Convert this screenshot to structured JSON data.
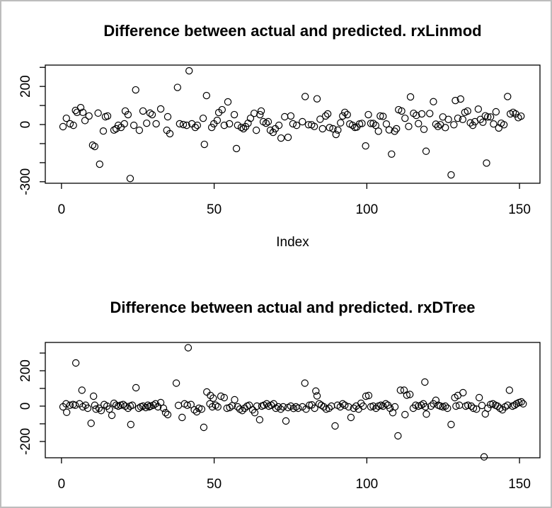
{
  "frame": {
    "background": "#ffffff",
    "border_color": "#bdbdbd",
    "axis_color": "#000000",
    "point_color": "#000000"
  },
  "chart_data": [
    {
      "type": "scatter",
      "title": "Difference between actual and predicted. rxLinmod",
      "xlabel": "Index",
      "ylabel": "",
      "grid": false,
      "legend": "none",
      "marker": "open-circle",
      "xlim": [
        -5.3,
        156.7
      ],
      "ylim": [
        -308,
        312
      ],
      "x_ticks": [
        0,
        50,
        100,
        150
      ],
      "x_tick_labels": [
        "0",
        "50",
        "100",
        "150"
      ],
      "y_ticks": [
        300,
        200,
        100,
        0,
        -100,
        -200,
        -300
      ],
      "y_tick_labels": [
        "",
        "200",
        "",
        "0",
        "",
        "",
        "-300"
      ],
      "points": [
        [
          0.5,
          -11
        ],
        [
          1.6,
          33
        ],
        [
          2.8,
          4
        ],
        [
          3.9,
          -4
        ],
        [
          4.6,
          74
        ],
        [
          5.1,
          64
        ],
        [
          6.3,
          89
        ],
        [
          7.0,
          64
        ],
        [
          7.7,
          21
        ],
        [
          9.0,
          45
        ],
        [
          10.2,
          -108
        ],
        [
          10.9,
          -115
        ],
        [
          12.0,
          60
        ],
        [
          12.5,
          -208
        ],
        [
          13.7,
          -34
        ],
        [
          14.4,
          41
        ],
        [
          15.1,
          45
        ],
        [
          17.2,
          -29
        ],
        [
          17.9,
          -22
        ],
        [
          18.6,
          -4
        ],
        [
          19.5,
          -15
        ],
        [
          20.6,
          4
        ],
        [
          20.9,
          71
        ],
        [
          21.8,
          52
        ],
        [
          22.5,
          -283
        ],
        [
          23.7,
          -4
        ],
        [
          24.3,
          182
        ],
        [
          25.5,
          -30
        ],
        [
          26.7,
          71
        ],
        [
          27.9,
          7
        ],
        [
          29.0,
          60
        ],
        [
          29.7,
          52
        ],
        [
          31.0,
          4
        ],
        [
          32.5,
          82
        ],
        [
          34.5,
          -30
        ],
        [
          34.8,
          41
        ],
        [
          35.5,
          -48
        ],
        [
          38.0,
          195
        ],
        [
          38.7,
          4
        ],
        [
          39.9,
          0
        ],
        [
          41.0,
          -4
        ],
        [
          41.8,
          282
        ],
        [
          42.7,
          4
        ],
        [
          43.8,
          -15
        ],
        [
          44.5,
          -4
        ],
        [
          46.4,
          33
        ],
        [
          46.8,
          -104
        ],
        [
          47.5,
          152
        ],
        [
          49.2,
          -15
        ],
        [
          49.9,
          4
        ],
        [
          51.0,
          22
        ],
        [
          51.5,
          63
        ],
        [
          52.6,
          78
        ],
        [
          53.3,
          -4
        ],
        [
          54.5,
          119
        ],
        [
          55.0,
          4
        ],
        [
          56.6,
          52
        ],
        [
          57.3,
          -126
        ],
        [
          57.7,
          -4
        ],
        [
          58.9,
          -15
        ],
        [
          59.6,
          -22
        ],
        [
          60.3,
          -11
        ],
        [
          61.1,
          7
        ],
        [
          61.9,
          33
        ],
        [
          63.1,
          59
        ],
        [
          63.8,
          -30
        ],
        [
          65.0,
          52
        ],
        [
          65.4,
          71
        ],
        [
          66.1,
          15
        ],
        [
          67.0,
          7
        ],
        [
          67.7,
          15
        ],
        [
          68.4,
          -30
        ],
        [
          69.3,
          -41
        ],
        [
          70.0,
          -22
        ],
        [
          71.2,
          -4
        ],
        [
          71.9,
          -71
        ],
        [
          73.1,
          41
        ],
        [
          74.2,
          -67
        ],
        [
          75.1,
          45
        ],
        [
          75.8,
          4
        ],
        [
          77.0,
          -4
        ],
        [
          78.9,
          15
        ],
        [
          79.8,
          147
        ],
        [
          80.9,
          -1
        ],
        [
          81.9,
          -1
        ],
        [
          82.8,
          -10
        ],
        [
          83.7,
          135
        ],
        [
          84.7,
          28
        ],
        [
          85.5,
          -22
        ],
        [
          86.5,
          45
        ],
        [
          87.2,
          56
        ],
        [
          87.8,
          -16
        ],
        [
          88.9,
          -22
        ],
        [
          89.9,
          -52
        ],
        [
          90.5,
          -29
        ],
        [
          91.4,
          9
        ],
        [
          92.1,
          45
        ],
        [
          92.8,
          64
        ],
        [
          93.6,
          52
        ],
        [
          94.4,
          3
        ],
        [
          95.3,
          -4
        ],
        [
          96.1,
          -15
        ],
        [
          96.7,
          -13
        ],
        [
          97.6,
          3
        ],
        [
          98.4,
          6
        ],
        [
          99.6,
          -112
        ],
        [
          100.5,
          52
        ],
        [
          101.3,
          6
        ],
        [
          102.1,
          6
        ],
        [
          102.9,
          -4
        ],
        [
          103.8,
          -35
        ],
        [
          104.4,
          45
        ],
        [
          105.3,
          43
        ],
        [
          106.4,
          3
        ],
        [
          107.3,
          -28
        ],
        [
          108.1,
          -155
        ],
        [
          109.1,
          -35
        ],
        [
          109.7,
          -22
        ],
        [
          110.4,
          78
        ],
        [
          111.4,
          71
        ],
        [
          112.5,
          33
        ],
        [
          113.7,
          -10
        ],
        [
          114.3,
          145
        ],
        [
          115.3,
          59
        ],
        [
          116.2,
          48
        ],
        [
          116.9,
          5
        ],
        [
          118.0,
          56
        ],
        [
          118.7,
          -25
        ],
        [
          119.4,
          -140
        ],
        [
          120.6,
          58
        ],
        [
          121.8,
          120
        ],
        [
          122.6,
          2
        ],
        [
          123.3,
          -10
        ],
        [
          124.1,
          -1
        ],
        [
          124.9,
          40
        ],
        [
          125.7,
          -16
        ],
        [
          126.7,
          27
        ],
        [
          127.6,
          -264
        ],
        [
          128.5,
          -1
        ],
        [
          129.0,
          126
        ],
        [
          129.8,
          33
        ],
        [
          130.7,
          134
        ],
        [
          131.4,
          27
        ],
        [
          132.1,
          64
        ],
        [
          133.0,
          71
        ],
        [
          133.9,
          9
        ],
        [
          134.7,
          -4
        ],
        [
          135.4,
          15
        ],
        [
          136.5,
          81
        ],
        [
          137.2,
          27
        ],
        [
          138.0,
          12
        ],
        [
          138.8,
          46
        ],
        [
          139.2,
          -202
        ],
        [
          139.6,
          40
        ],
        [
          140.5,
          40
        ],
        [
          141.5,
          3
        ],
        [
          142.3,
          67
        ],
        [
          143.2,
          -18
        ],
        [
          144.0,
          7
        ],
        [
          144.9,
          -1
        ],
        [
          146.1,
          147
        ],
        [
          147.0,
          56
        ],
        [
          147.9,
          64
        ],
        [
          148.7,
          56
        ],
        [
          149.6,
          36
        ],
        [
          150.5,
          44
        ]
      ]
    },
    {
      "type": "scatter",
      "title": "Difference between actual and predicted. rxDTree",
      "xlabel": "",
      "ylabel": "",
      "grid": false,
      "legend": "none",
      "marker": "open-circle",
      "xlim": [
        -5.3,
        156.7
      ],
      "ylim": [
        -292,
        360
      ],
      "x_ticks": [
        0,
        50,
        100,
        150
      ],
      "x_tick_labels": [
        "0",
        "50",
        "100",
        "150"
      ],
      "y_ticks": [
        300,
        200,
        100,
        0,
        -100,
        -200
      ],
      "y_tick_labels": [
        "",
        "200",
        "",
        "0",
        "",
        "-200"
      ],
      "points": [
        [
          0.5,
          -4
        ],
        [
          1.5,
          13
        ],
        [
          1.7,
          -35
        ],
        [
          2.8,
          5
        ],
        [
          3.8,
          9
        ],
        [
          4.5,
          5
        ],
        [
          4.7,
          244
        ],
        [
          5.9,
          13
        ],
        [
          6.7,
          90
        ],
        [
          7.0,
          -4
        ],
        [
          7.9,
          5
        ],
        [
          8.6,
          -12
        ],
        [
          9.7,
          -97
        ],
        [
          10.5,
          56
        ],
        [
          10.9,
          5
        ],
        [
          11.3,
          -17
        ],
        [
          12.3,
          -12
        ],
        [
          13.0,
          -25
        ],
        [
          14.0,
          9
        ],
        [
          14.9,
          0
        ],
        [
          15.7,
          -17
        ],
        [
          16.5,
          -52
        ],
        [
          17.2,
          16
        ],
        [
          17.9,
          5
        ],
        [
          18.6,
          0
        ],
        [
          19.4,
          5
        ],
        [
          20.2,
          9
        ],
        [
          20.9,
          0
        ],
        [
          21.8,
          -12
        ],
        [
          22.5,
          0
        ],
        [
          22.7,
          -104
        ],
        [
          23.2,
          5
        ],
        [
          24.4,
          104
        ],
        [
          25.3,
          -12
        ],
        [
          26.0,
          -4
        ],
        [
          26.7,
          0
        ],
        [
          27.6,
          -8
        ],
        [
          28.3,
          5
        ],
        [
          28.7,
          -4
        ],
        [
          29.2,
          0
        ],
        [
          30.1,
          5
        ],
        [
          30.8,
          13
        ],
        [
          31.6,
          -4
        ],
        [
          32.5,
          20
        ],
        [
          33.4,
          -12
        ],
        [
          34.1,
          -37
        ],
        [
          34.8,
          -48
        ],
        [
          37.6,
          130
        ],
        [
          38.3,
          4
        ],
        [
          39.5,
          -64
        ],
        [
          40.3,
          13
        ],
        [
          41.2,
          5
        ],
        [
          41.5,
          330
        ],
        [
          42.4,
          9
        ],
        [
          43.5,
          -21
        ],
        [
          44.3,
          -32
        ],
        [
          45.0,
          -12
        ],
        [
          45.9,
          -17
        ],
        [
          46.6,
          -120
        ],
        [
          47.6,
          80
        ],
        [
          48.6,
          13
        ],
        [
          48.8,
          60
        ],
        [
          49.4,
          -4
        ],
        [
          49.7,
          45
        ],
        [
          50.5,
          5
        ],
        [
          51.2,
          -4
        ],
        [
          52.2,
          56
        ],
        [
          53.3,
          48
        ],
        [
          54.2,
          -12
        ],
        [
          55.1,
          -8
        ],
        [
          55.9,
          2
        ],
        [
          56.7,
          36
        ],
        [
          57.7,
          -4
        ],
        [
          58.4,
          -17
        ],
        [
          59.2,
          -25
        ],
        [
          60.0,
          -12
        ],
        [
          60.8,
          0
        ],
        [
          61.5,
          5
        ],
        [
          62.6,
          -21
        ],
        [
          63.3,
          -37
        ],
        [
          64.0,
          0
        ],
        [
          64.9,
          -77
        ],
        [
          65.6,
          0
        ],
        [
          66.3,
          5
        ],
        [
          67.2,
          13
        ],
        [
          67.9,
          0
        ],
        [
          68.7,
          5
        ],
        [
          69.5,
          13
        ],
        [
          70.2,
          -12
        ],
        [
          71.0,
          -4
        ],
        [
          71.8,
          -17
        ],
        [
          72.6,
          -4
        ],
        [
          73.5,
          -84
        ],
        [
          74.2,
          -8
        ],
        [
          75.1,
          0
        ],
        [
          76.0,
          -13
        ],
        [
          76.8,
          -4
        ],
        [
          77.5,
          -12
        ],
        [
          78.9,
          -4
        ],
        [
          79.7,
          130
        ],
        [
          80.1,
          -17
        ],
        [
          81.2,
          5
        ],
        [
          82.0,
          7
        ],
        [
          82.9,
          -12
        ],
        [
          83.3,
          85
        ],
        [
          83.7,
          58
        ],
        [
          84.4,
          13
        ],
        [
          85.1,
          5
        ],
        [
          85.9,
          -4
        ],
        [
          86.7,
          -17
        ],
        [
          87.6,
          -12
        ],
        [
          88.4,
          0
        ],
        [
          89.6,
          -112
        ],
        [
          90.4,
          5
        ],
        [
          91.3,
          -4
        ],
        [
          92.1,
          13
        ],
        [
          92.8,
          5
        ],
        [
          94.0,
          -4
        ],
        [
          94.8,
          -64
        ],
        [
          95.7,
          -12
        ],
        [
          96.5,
          0
        ],
        [
          97.3,
          -17
        ],
        [
          98.1,
          16
        ],
        [
          98.8,
          0
        ],
        [
          99.7,
          56
        ],
        [
          100.6,
          60
        ],
        [
          101.3,
          -4
        ],
        [
          102.1,
          0
        ],
        [
          103.0,
          -12
        ],
        [
          103.8,
          0
        ],
        [
          104.6,
          5
        ],
        [
          105.3,
          0
        ],
        [
          106.2,
          13
        ],
        [
          106.9,
          5
        ],
        [
          107.6,
          -12
        ],
        [
          108.5,
          -37
        ],
        [
          109.2,
          -4
        ],
        [
          110.2,
          -168
        ],
        [
          111.0,
          90
        ],
        [
          112.2,
          90
        ],
        [
          112.5,
          -48
        ],
        [
          113.1,
          62
        ],
        [
          114.1,
          66
        ],
        [
          115.2,
          -12
        ],
        [
          116.0,
          5
        ],
        [
          116.9,
          0
        ],
        [
          117.8,
          5
        ],
        [
          118.5,
          13
        ],
        [
          119.0,
          136
        ],
        [
          119.2,
          -4
        ],
        [
          119.5,
          -45
        ],
        [
          121.0,
          0
        ],
        [
          121.8,
          13
        ],
        [
          122.6,
          33
        ],
        [
          123.4,
          5
        ],
        [
          124.1,
          0
        ],
        [
          124.9,
          -4
        ],
        [
          125.7,
          0
        ],
        [
          126.4,
          -12
        ],
        [
          127.6,
          -104
        ],
        [
          128.8,
          48
        ],
        [
          129.2,
          0
        ],
        [
          129.8,
          60
        ],
        [
          130.3,
          5
        ],
        [
          131.5,
          76
        ],
        [
          132.4,
          0
        ],
        [
          133.1,
          5
        ],
        [
          134.2,
          0
        ],
        [
          134.9,
          -12
        ],
        [
          135.9,
          -17
        ],
        [
          136.8,
          48
        ],
        [
          137.7,
          4
        ],
        [
          138.4,
          -287
        ],
        [
          138.8,
          -44
        ],
        [
          139.6,
          -12
        ],
        [
          140.5,
          9
        ],
        [
          141.3,
          13
        ],
        [
          142.1,
          5
        ],
        [
          142.8,
          0
        ],
        [
          143.6,
          -12
        ],
        [
          144.4,
          -21
        ],
        [
          145.3,
          -4
        ],
        [
          146.1,
          5
        ],
        [
          146.7,
          90
        ],
        [
          147.7,
          0
        ],
        [
          148.4,
          5
        ],
        [
          149.0,
          13
        ],
        [
          149.8,
          20
        ],
        [
          150.6,
          24
        ],
        [
          151.2,
          13
        ]
      ]
    }
  ]
}
